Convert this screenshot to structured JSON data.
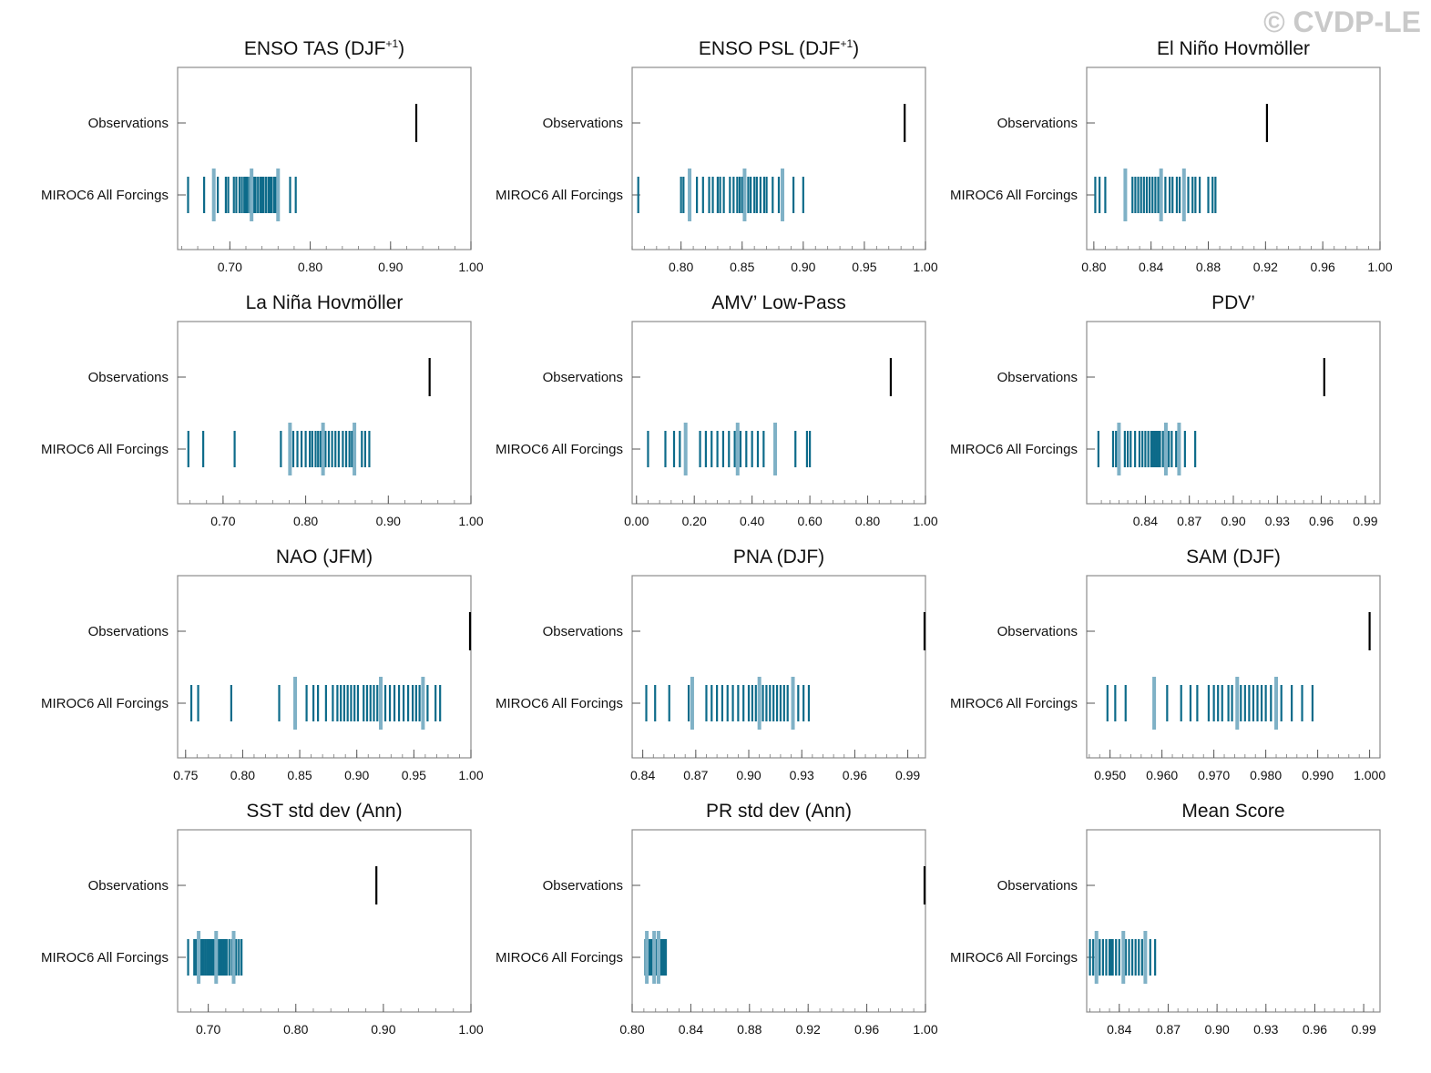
{
  "watermark": "© CVDP-LE",
  "colors": {
    "ensemble": "#0d6b8a",
    "highlight": "#7fb1c6",
    "observation": "#000000",
    "frame": "#8c8c8c"
  },
  "chart_data": [
    {
      "type": "strip",
      "title": "ENSO TAS (DJF",
      "title_superscript": "+1",
      "title_suffix": ")",
      "categories": [
        "Observations",
        "MIROC6 All Forcings"
      ],
      "xlim": [
        0.635,
        1.0
      ],
      "xticks": [
        "0.70",
        "0.80",
        "0.90",
        "1.00"
      ],
      "observation": 0.932,
      "highlighted": [
        0.68,
        0.727,
        0.76
      ],
      "ensemble": [
        0.648,
        0.668,
        0.68,
        0.685,
        0.695,
        0.698,
        0.705,
        0.708,
        0.712,
        0.715,
        0.718,
        0.72,
        0.722,
        0.725,
        0.727,
        0.73,
        0.732,
        0.735,
        0.738,
        0.74,
        0.742,
        0.745,
        0.748,
        0.75,
        0.752,
        0.755,
        0.757,
        0.76,
        0.775,
        0.782
      ]
    },
    {
      "type": "strip",
      "title": "ENSO PSL (DJF",
      "title_superscript": "+1",
      "title_suffix": ")",
      "categories": [
        "Observations",
        "MIROC6 All Forcings"
      ],
      "xlim": [
        0.76,
        1.0
      ],
      "xticks": [
        "0.80",
        "0.85",
        "0.90",
        "0.95",
        "1.00"
      ],
      "observation": 0.983,
      "highlighted": [
        0.807,
        0.852,
        0.883
      ],
      "ensemble": [
        0.765,
        0.8,
        0.802,
        0.807,
        0.813,
        0.818,
        0.823,
        0.826,
        0.83,
        0.832,
        0.835,
        0.84,
        0.843,
        0.846,
        0.848,
        0.85,
        0.852,
        0.855,
        0.857,
        0.86,
        0.862,
        0.865,
        0.868,
        0.87,
        0.875,
        0.88,
        0.883,
        0.892,
        0.9
      ]
    },
    {
      "type": "strip",
      "title": "El Niño Hovmöller",
      "categories": [
        "Observations",
        "MIROC6 All Forcings"
      ],
      "xlim": [
        0.795,
        1.0
      ],
      "xticks": [
        "0.80",
        "0.84",
        "0.88",
        "0.92",
        "0.96",
        "1.00"
      ],
      "observation": 0.921,
      "highlighted": [
        0.822,
        0.847,
        0.863
      ],
      "ensemble": [
        0.801,
        0.804,
        0.808,
        0.822,
        0.827,
        0.829,
        0.831,
        0.833,
        0.835,
        0.837,
        0.839,
        0.841,
        0.843,
        0.845,
        0.847,
        0.85,
        0.853,
        0.855,
        0.858,
        0.86,
        0.863,
        0.866,
        0.869,
        0.871,
        0.874,
        0.88,
        0.883,
        0.885
      ]
    },
    {
      "type": "strip",
      "title": "La Niña Hovmöller",
      "categories": [
        "Observations",
        "MIROC6 All Forcings"
      ],
      "xlim": [
        0.645,
        1.0
      ],
      "xticks": [
        "0.70",
        "0.80",
        "0.90",
        "1.00"
      ],
      "observation": 0.95,
      "highlighted": [
        0.781,
        0.821,
        0.859
      ],
      "ensemble": [
        0.658,
        0.676,
        0.714,
        0.77,
        0.781,
        0.785,
        0.79,
        0.795,
        0.8,
        0.805,
        0.808,
        0.812,
        0.815,
        0.818,
        0.821,
        0.824,
        0.828,
        0.832,
        0.836,
        0.84,
        0.845,
        0.849,
        0.853,
        0.856,
        0.859,
        0.868,
        0.872,
        0.877
      ]
    },
    {
      "type": "strip",
      "title": "AMV’ Low-Pass",
      "categories": [
        "Observations",
        "MIROC6 All Forcings"
      ],
      "xlim": [
        -0.015,
        1.0
      ],
      "xticks": [
        "0.00",
        "0.20",
        "0.40",
        "0.60",
        "0.80",
        "1.00"
      ],
      "observation": 0.88,
      "highlighted": [
        0.17,
        0.35,
        0.48
      ],
      "ensemble": [
        0.04,
        0.1,
        0.13,
        0.15,
        0.17,
        0.22,
        0.24,
        0.26,
        0.28,
        0.3,
        0.32,
        0.34,
        0.35,
        0.36,
        0.38,
        0.4,
        0.42,
        0.44,
        0.48,
        0.55,
        0.59,
        0.6
      ]
    },
    {
      "type": "strip",
      "title": "PDV’",
      "categories": [
        "Observations",
        "MIROC6 All Forcings"
      ],
      "xlim": [
        0.8,
        1.0
      ],
      "xticks": [
        "0.84",
        "0.87",
        "0.90",
        "0.93",
        "0.96",
        "0.99"
      ],
      "observation": 0.962,
      "highlighted": [
        0.822,
        0.854,
        0.863
      ],
      "ensemble": [
        0.808,
        0.818,
        0.82,
        0.822,
        0.826,
        0.828,
        0.83,
        0.833,
        0.836,
        0.838,
        0.84,
        0.842,
        0.844,
        0.845,
        0.846,
        0.847,
        0.848,
        0.849,
        0.85,
        0.852,
        0.854,
        0.856,
        0.858,
        0.861,
        0.863,
        0.867,
        0.874
      ]
    },
    {
      "type": "strip",
      "title": "NAO (JFM)",
      "categories": [
        "Observations",
        "MIROC6 All Forcings"
      ],
      "xlim": [
        0.743,
        1.0
      ],
      "xticks": [
        "0.75",
        "0.80",
        "0.85",
        "0.90",
        "0.95",
        "1.00"
      ],
      "observation": 1.0,
      "highlighted": [
        0.846,
        0.921,
        0.958
      ],
      "ensemble": [
        0.755,
        0.761,
        0.79,
        0.832,
        0.846,
        0.856,
        0.862,
        0.866,
        0.873,
        0.879,
        0.883,
        0.886,
        0.889,
        0.892,
        0.895,
        0.898,
        0.901,
        0.906,
        0.909,
        0.912,
        0.915,
        0.918,
        0.921,
        0.925,
        0.929,
        0.933,
        0.937,
        0.941,
        0.945,
        0.949,
        0.952,
        0.955,
        0.958,
        0.962,
        0.969,
        0.973
      ]
    },
    {
      "type": "strip",
      "title": "PNA (DJF)",
      "categories": [
        "Observations",
        "MIROC6 All Forcings"
      ],
      "xlim": [
        0.834,
        1.0
      ],
      "xticks": [
        "0.84",
        "0.87",
        "0.90",
        "0.93",
        "0.96",
        "0.99"
      ],
      "observation": 1.0,
      "highlighted": [
        0.868,
        0.906,
        0.925
      ],
      "ensemble": [
        0.842,
        0.847,
        0.855,
        0.866,
        0.868,
        0.876,
        0.879,
        0.882,
        0.885,
        0.888,
        0.891,
        0.894,
        0.897,
        0.9,
        0.902,
        0.904,
        0.906,
        0.908,
        0.91,
        0.912,
        0.914,
        0.916,
        0.918,
        0.92,
        0.922,
        0.925,
        0.928,
        0.931,
        0.934
      ]
    },
    {
      "type": "strip",
      "title": "SAM (DJF)",
      "categories": [
        "Observations",
        "MIROC6 All Forcings"
      ],
      "xlim": [
        0.9455,
        1.002
      ],
      "xticks": [
        "0.950",
        "0.960",
        "0.970",
        "0.980",
        "0.990",
        "1.000"
      ],
      "observation": 1.0,
      "highlighted": [
        0.9585,
        0.9745,
        0.982
      ],
      "ensemble": [
        0.9495,
        0.951,
        0.953,
        0.9585,
        0.961,
        0.9637,
        0.9655,
        0.9668,
        0.969,
        0.97,
        0.9708,
        0.9716,
        0.9728,
        0.9735,
        0.9745,
        0.9752,
        0.976,
        0.9768,
        0.9776,
        0.9784,
        0.9792,
        0.98,
        0.981,
        0.982,
        0.983,
        0.985,
        0.987,
        0.989
      ]
    },
    {
      "type": "strip",
      "title": "SST std dev (Ann)",
      "categories": [
        "Observations",
        "MIROC6 All Forcings"
      ],
      "xlim": [
        0.665,
        1.0
      ],
      "xticks": [
        "0.70",
        "0.80",
        "0.90",
        "1.00"
      ],
      "observation": 0.892,
      "highlighted": [
        0.689,
        0.709,
        0.729
      ],
      "ensemble": [
        0.677,
        0.684,
        0.686,
        0.689,
        0.691,
        0.693,
        0.695,
        0.697,
        0.699,
        0.701,
        0.703,
        0.705,
        0.707,
        0.709,
        0.711,
        0.713,
        0.715,
        0.717,
        0.719,
        0.721,
        0.724,
        0.727,
        0.729,
        0.732,
        0.735,
        0.738
      ]
    },
    {
      "type": "strip",
      "title": "PR std dev (Ann)",
      "categories": [
        "Observations",
        "MIROC6 All Forcings"
      ],
      "xlim": [
        0.8,
        1.0
      ],
      "xticks": [
        "0.80",
        "0.84",
        "0.88",
        "0.92",
        "0.96",
        "1.00"
      ],
      "observation": 1.0,
      "highlighted": [
        0.81,
        0.815,
        0.818
      ],
      "ensemble": [
        0.809,
        0.81,
        0.811,
        0.812,
        0.813,
        0.814,
        0.815,
        0.816,
        0.817,
        0.818,
        0.819,
        0.82,
        0.821,
        0.822,
        0.823
      ]
    },
    {
      "type": "strip",
      "title": "Mean Score",
      "categories": [
        "Observations",
        "MIROC6 All Forcings"
      ],
      "xlim": [
        0.82,
        1.0
      ],
      "xticks": [
        "0.84",
        "0.87",
        "0.90",
        "0.93",
        "0.96",
        "0.99"
      ],
      "highlighted": [
        0.826,
        0.8425,
        0.856
      ],
      "ensemble": [
        0.822,
        0.824,
        0.826,
        0.828,
        0.83,
        0.832,
        0.834,
        0.835,
        0.836,
        0.838,
        0.84,
        0.8425,
        0.844,
        0.846,
        0.848,
        0.85,
        0.852,
        0.854,
        0.856,
        0.859,
        0.862
      ]
    }
  ]
}
